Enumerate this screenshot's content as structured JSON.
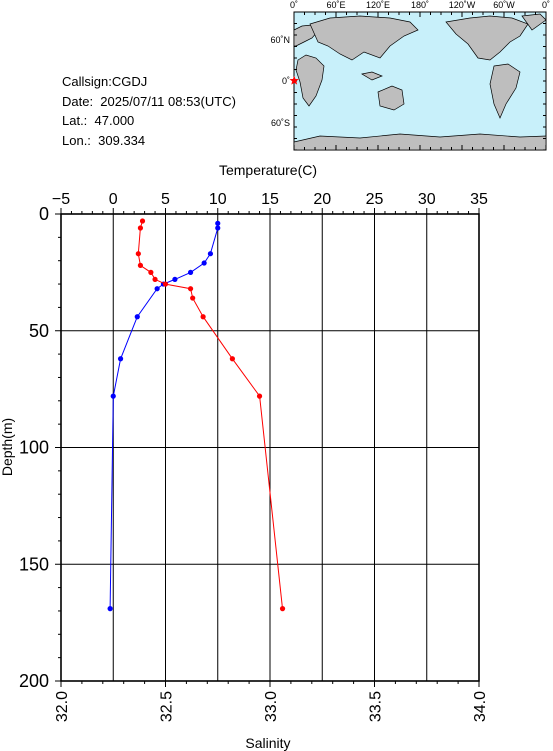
{
  "info": {
    "callsign": "Callsign:CGDJ",
    "date": "Date:  2025/07/11 08:53(UTC)",
    "lat": "Lat.:  47.000",
    "lon": "Lon.:  309.334"
  },
  "map": {
    "top_labels": [
      "0˚",
      "60˚E",
      "120˚E",
      "180˚",
      "120˚W",
      "60˚W",
      "0˚"
    ],
    "left_labels": [
      "60˚N",
      "0˚",
      "60˚S"
    ],
    "marker_icon": "star-icon",
    "marker_color": "#ff0000",
    "ocean_color": "#c8f0fa",
    "land_color": "#bebebe"
  },
  "chart_data": {
    "type": "line",
    "top_axis": {
      "label": "Temperature(C)",
      "range": [
        -5,
        35
      ],
      "ticks": [
        "−5",
        "0",
        "5",
        "10",
        "15",
        "20",
        "25",
        "30",
        "35"
      ]
    },
    "bottom_axis": {
      "label": "Salinity",
      "range": [
        32.0,
        34.0
      ],
      "ticks": [
        "32.0",
        "32.5",
        "33.0",
        "33.5",
        "34.0"
      ]
    },
    "y_axis": {
      "label": "Depth(m)",
      "range": [
        0,
        200
      ],
      "inverted": true,
      "ticks": [
        "0",
        "50",
        "100",
        "150",
        "200"
      ]
    },
    "grid": true,
    "series": [
      {
        "axis": "temperature",
        "color": "#0000ff",
        "depth": [
          4,
          6,
          17,
          21,
          25,
          28,
          30,
          32,
          44,
          62,
          78,
          169
        ],
        "values": [
          10.0,
          10.0,
          9.3,
          8.7,
          7.4,
          5.9,
          4.8,
          4.2,
          2.3,
          0.7,
          0.0,
          -0.3
        ]
      },
      {
        "axis": "salinity",
        "color": "#ff0000",
        "depth": [
          3,
          6,
          17,
          22,
          25,
          28,
          30,
          32,
          36,
          44,
          62,
          78,
          169
        ],
        "values": [
          32.39,
          32.38,
          32.37,
          32.38,
          32.43,
          32.45,
          32.5,
          32.62,
          32.63,
          32.68,
          32.82,
          32.95,
          33.06
        ]
      }
    ]
  }
}
